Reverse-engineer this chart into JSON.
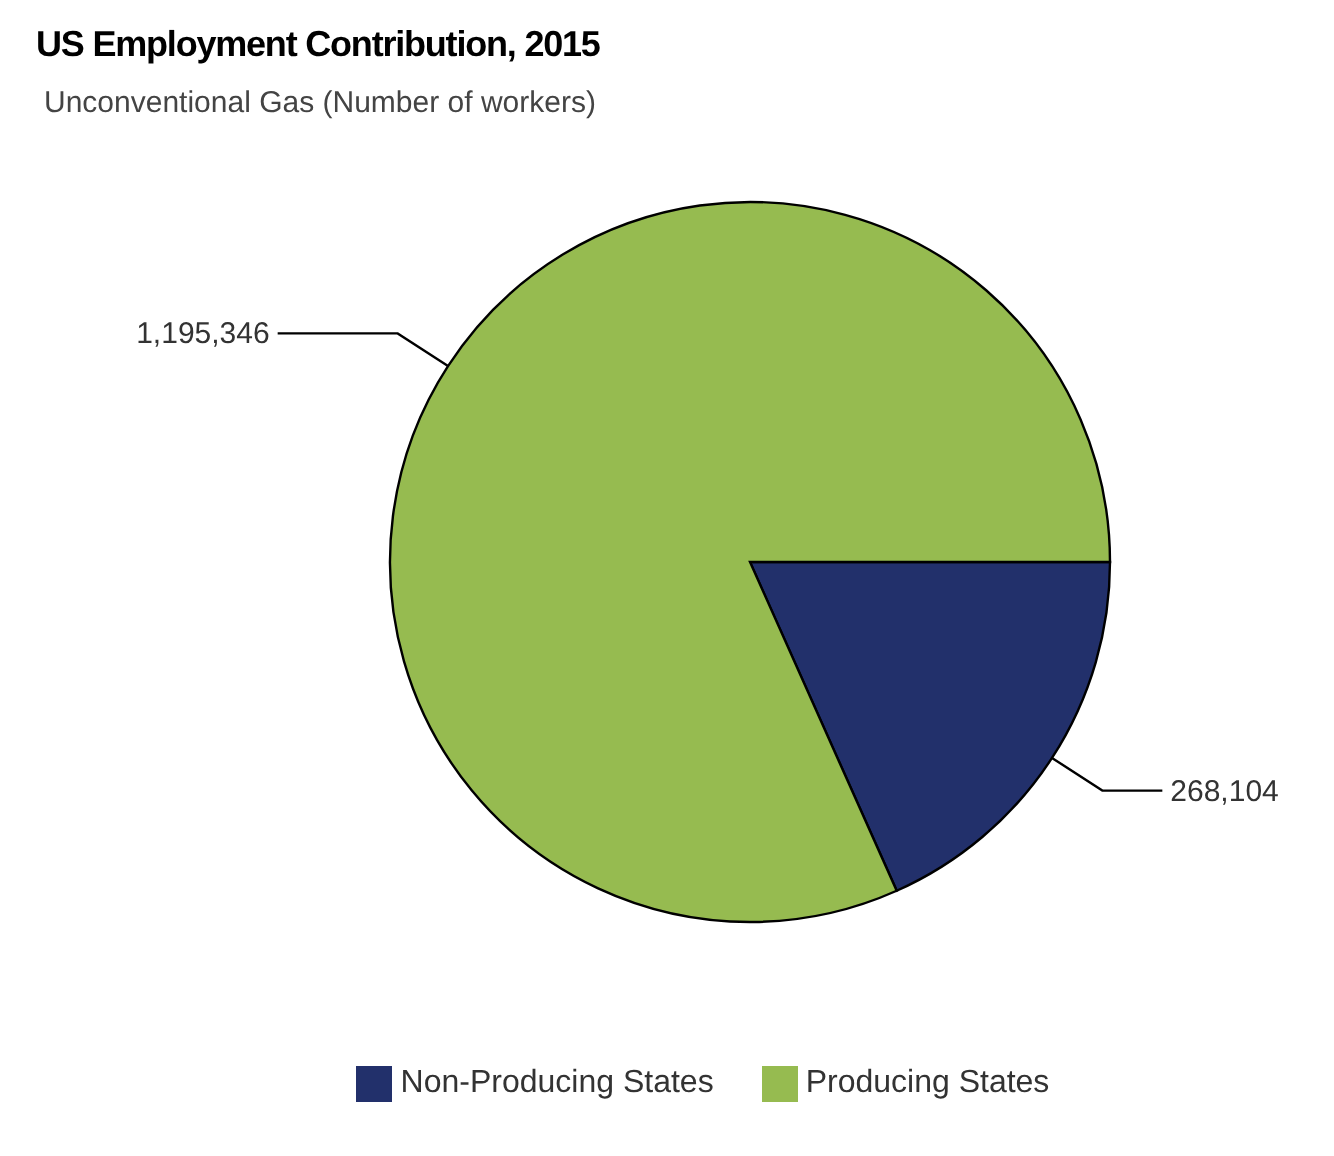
{
  "chart_data": {
    "type": "pie",
    "title": "US Employment Contribution, 2015",
    "subtitle": "Unconventional Gas (Number of workers)",
    "categories": [
      "Non-Producing States",
      "Producing States"
    ],
    "values": [
      268104,
      1195346
    ],
    "colors": [
      "#22306b",
      "#96bb50"
    ],
    "value_labels": [
      "268,104",
      "1,195,346"
    ],
    "legend": "bottom"
  }
}
